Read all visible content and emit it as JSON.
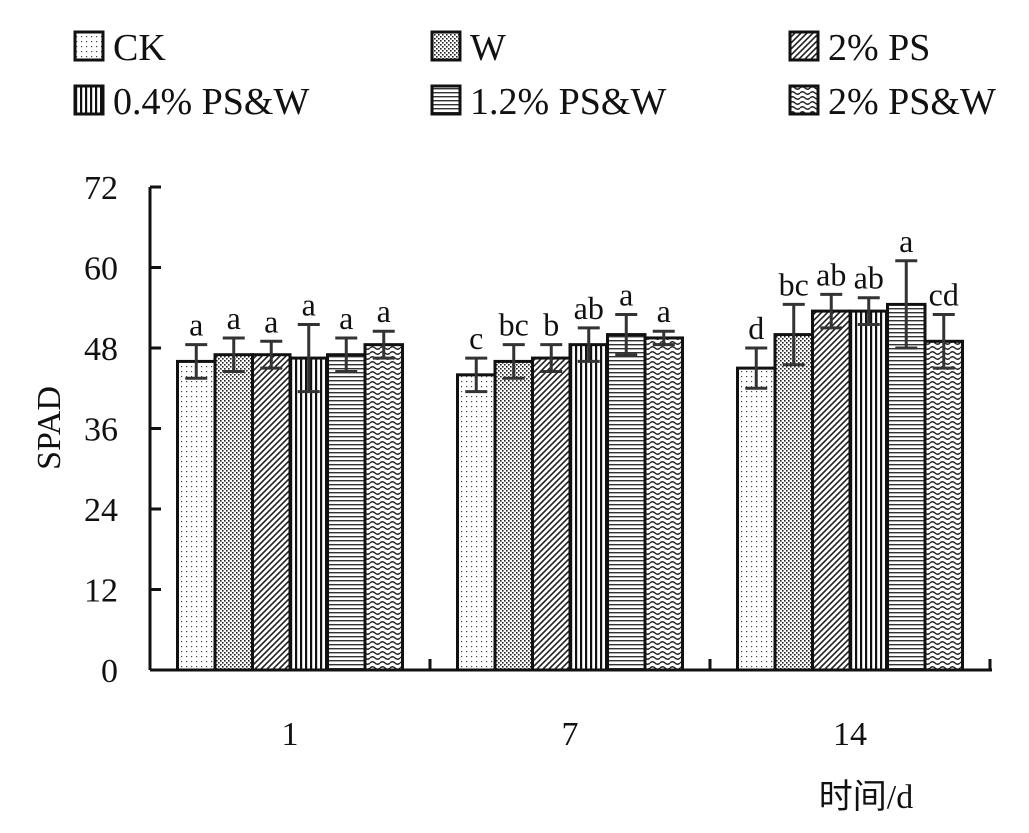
{
  "chart_data": {
    "type": "bar",
    "title": "",
    "xlabel": "时间/d",
    "ylabel": "SPAD",
    "ylim": [
      0,
      72
    ],
    "yticks": [
      0,
      12,
      24,
      36,
      48,
      60,
      72
    ],
    "categories": [
      "1",
      "7",
      "14"
    ],
    "legend_position": "top",
    "series": [
      {
        "name": "CK",
        "pattern": "fine-dots",
        "values": [
          46,
          44,
          45
        ],
        "errors": [
          2.5,
          2.5,
          3
        ],
        "sig": [
          "a",
          "c",
          "d"
        ]
      },
      {
        "name": "W",
        "pattern": "dense-dots",
        "values": [
          47,
          46,
          50
        ],
        "errors": [
          2.5,
          2.5,
          4.5
        ],
        "sig": [
          "a",
          "bc",
          "bc"
        ]
      },
      {
        "name": "2% PS",
        "pattern": "diagonal-lines",
        "values": [
          47,
          46.5,
          53.5
        ],
        "errors": [
          2,
          2,
          2.5
        ],
        "sig": [
          "a",
          "b",
          "ab"
        ]
      },
      {
        "name": "0.4% PS&W",
        "pattern": "vertical-lines",
        "values": [
          46.5,
          48.5,
          53.5
        ],
        "errors": [
          5,
          2.5,
          2
        ],
        "sig": [
          "a",
          "ab",
          "ab"
        ]
      },
      {
        "name": "1.2% PS&W",
        "pattern": "horizontal-lines",
        "values": [
          47,
          50,
          54.5
        ],
        "errors": [
          2.5,
          3,
          6.5
        ],
        "sig": [
          "a",
          "a",
          "a"
        ]
      },
      {
        "name": "2% PS&W",
        "pattern": "waves",
        "values": [
          48.5,
          49.5,
          49
        ],
        "errors": [
          2,
          1,
          4
        ],
        "sig": [
          "a",
          "a",
          "cd"
        ]
      }
    ]
  }
}
